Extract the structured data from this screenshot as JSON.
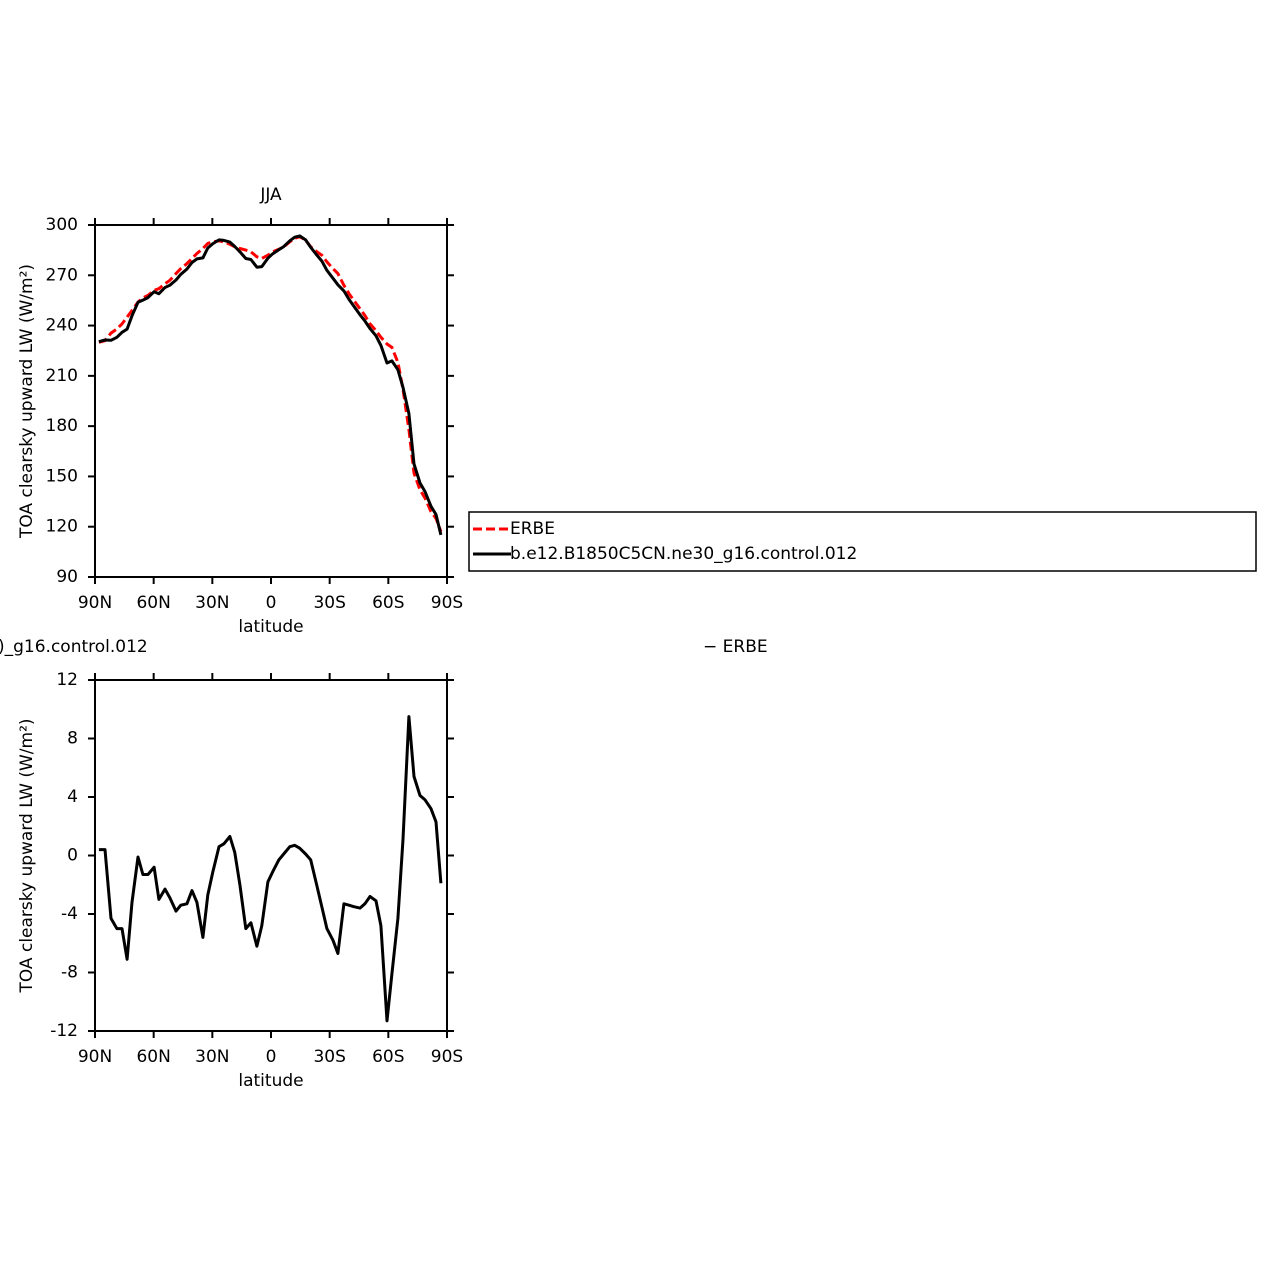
{
  "chart_data": [
    {
      "type": "line",
      "title": "JJA",
      "xlabel": "latitude",
      "ylabel": "TOA clearsky upward LW (W/m²)",
      "x": [
        88,
        84.9,
        81.8,
        78.8,
        76.2,
        73.6,
        71.1,
        68,
        65.5,
        62.9,
        59.8,
        57.3,
        54.2,
        51.7,
        48.6,
        46.1,
        43,
        40.4,
        37.9,
        34.8,
        32.3,
        29.7,
        26.6,
        24.1,
        21,
        18.5,
        15.9,
        12.9,
        10.3,
        7.2,
        4.7,
        1.6,
        -0.9,
        -4,
        -6.5,
        -9.6,
        -12.1,
        -14.7,
        -17.7,
        -20.3,
        -23.5,
        -26,
        -28.6,
        -31.7,
        -34.2,
        -37.3,
        -39.9,
        -42.4,
        -45.5,
        -48,
        -50.6,
        -53.7,
        -56.2,
        -59.3,
        -61.8,
        -64.9,
        -67.5,
        -70.5,
        -73.1,
        -76.2,
        -78.8,
        -81.8,
        -84.4,
        -86.9
      ],
      "series": [
        {
          "name": "ERBE",
          "color": "#ff0000",
          "line_style": "dashed",
          "values": [
            230,
            231,
            235.5,
            238,
            241,
            245,
            249,
            254,
            256.5,
            258,
            261,
            262,
            265,
            267,
            271,
            274,
            277,
            280,
            283,
            286,
            289,
            290,
            290.5,
            290,
            288.5,
            287,
            286,
            285,
            284,
            281,
            280,
            282,
            284,
            285.5,
            287,
            290,
            292,
            293,
            291,
            287,
            284,
            282,
            278,
            274,
            271,
            264,
            259,
            255,
            250,
            246,
            241,
            237,
            233,
            229,
            227,
            218,
            202,
            178,
            152,
            142,
            137,
            129,
            125,
            117
          ]
        },
        {
          "name": "b.e12.B1850C5CN.ne30_g16.control.012",
          "color": "#000000",
          "line_style": "solid",
          "values": [
            230.4,
            231.4,
            231.2,
            233,
            236,
            237.9,
            245.8,
            253.9,
            255.2,
            256.7,
            260.2,
            259,
            262.7,
            264.1,
            267.2,
            270.6,
            273.7,
            277.6,
            279.8,
            280.4,
            286.3,
            288.9,
            291.1,
            290.8,
            289.8,
            287.2,
            284,
            280,
            279.4,
            274.8,
            275.2,
            280.2,
            282.9,
            285.2,
            287.1,
            290.6,
            292.7,
            293.5,
            291.1,
            286.7,
            281.9,
            278.5,
            273,
            268.2,
            264.3,
            260.7,
            255.6,
            251.5,
            246.4,
            242.7,
            238.2,
            233.9,
            228.2,
            217.7,
            218.9,
            213.7,
            203.1,
            187.5,
            157.4,
            146.1,
            140.8,
            132.2,
            127.3,
            115.1
          ]
        }
      ],
      "xlim": [
        90,
        -90
      ],
      "xticks": [
        {
          "value": 90,
          "label": "90N"
        },
        {
          "value": 60,
          "label": "60N"
        },
        {
          "value": 30,
          "label": "30N"
        },
        0,
        {
          "value": -30,
          "label": "30S"
        },
        {
          "value": -60,
          "label": "60S"
        },
        {
          "value": -90,
          "label": "90S"
        }
      ],
      "ylim": [
        90,
        300
      ],
      "yticks": [
        90,
        120,
        150,
        180,
        210,
        240,
        270,
        300
      ],
      "grid": false,
      "legend": "outside-right"
    },
    {
      "type": "line",
      "annotations": [
        ")_g16.control.012",
        "− ERBE"
      ],
      "xlabel": "latitude",
      "ylabel": "TOA clearsky upward LW (W/m²)",
      "x": [
        88,
        84.9,
        81.8,
        78.8,
        76.2,
        73.6,
        71.1,
        68,
        65.5,
        62.9,
        59.8,
        57.3,
        54.2,
        51.7,
        48.6,
        46.1,
        43,
        40.4,
        37.9,
        34.8,
        32.3,
        29.7,
        26.6,
        24.1,
        21,
        18.5,
        15.9,
        12.9,
        10.3,
        7.2,
        4.7,
        1.6,
        -0.9,
        -4,
        -6.5,
        -9.6,
        -12.1,
        -14.7,
        -17.7,
        -20.3,
        -23.5,
        -26,
        -28.6,
        -31.7,
        -34.2,
        -37.3,
        -39.9,
        -42.4,
        -45.5,
        -48,
        -50.6,
        -53.7,
        -56.2,
        -59.3,
        -61.8,
        -64.9,
        -67.5,
        -70.5,
        -73.1,
        -76.2,
        -78.8,
        -81.8,
        -84.4,
        -86.9
      ],
      "series": [
        {
          "color": "#000000",
          "line_style": "solid",
          "values": [
            0.4,
            0.4,
            -4.3,
            -5,
            -5,
            -7.1,
            -3.2,
            -0.1,
            -1.3,
            -1.3,
            -0.8,
            -3,
            -2.3,
            -2.9,
            -3.8,
            -3.4,
            -3.3,
            -2.4,
            -3.2,
            -5.6,
            -2.7,
            -1.1,
            0.6,
            0.8,
            1.3,
            0.2,
            -2,
            -5,
            -4.6,
            -6.2,
            -4.8,
            -1.8,
            -1.1,
            -0.3,
            0.1,
            0.6,
            0.7,
            0.5,
            0.1,
            -0.3,
            -2.1,
            -3.5,
            -5,
            -5.8,
            -6.7,
            -3.3,
            -3.4,
            -3.5,
            -3.6,
            -3.3,
            -2.8,
            -3.1,
            -4.8,
            -11.3,
            -8.1,
            -4.3,
            1.1,
            9.5,
            5.4,
            4.1,
            3.8,
            3.2,
            2.3,
            -1.9
          ]
        }
      ],
      "xlim": [
        90,
        -90
      ],
      "xticks": [
        {
          "value": 90,
          "label": "90N"
        },
        {
          "value": 60,
          "label": "60N"
        },
        {
          "value": 30,
          "label": "30N"
        },
        0,
        {
          "value": -30,
          "label": "30S"
        },
        {
          "value": -60,
          "label": "60S"
        },
        {
          "value": -90,
          "label": "90S"
        }
      ],
      "ylim": [
        -12,
        12
      ],
      "yticks": [
        -12,
        -8,
        -4,
        0,
        4,
        8,
        12
      ],
      "grid": false
    }
  ]
}
